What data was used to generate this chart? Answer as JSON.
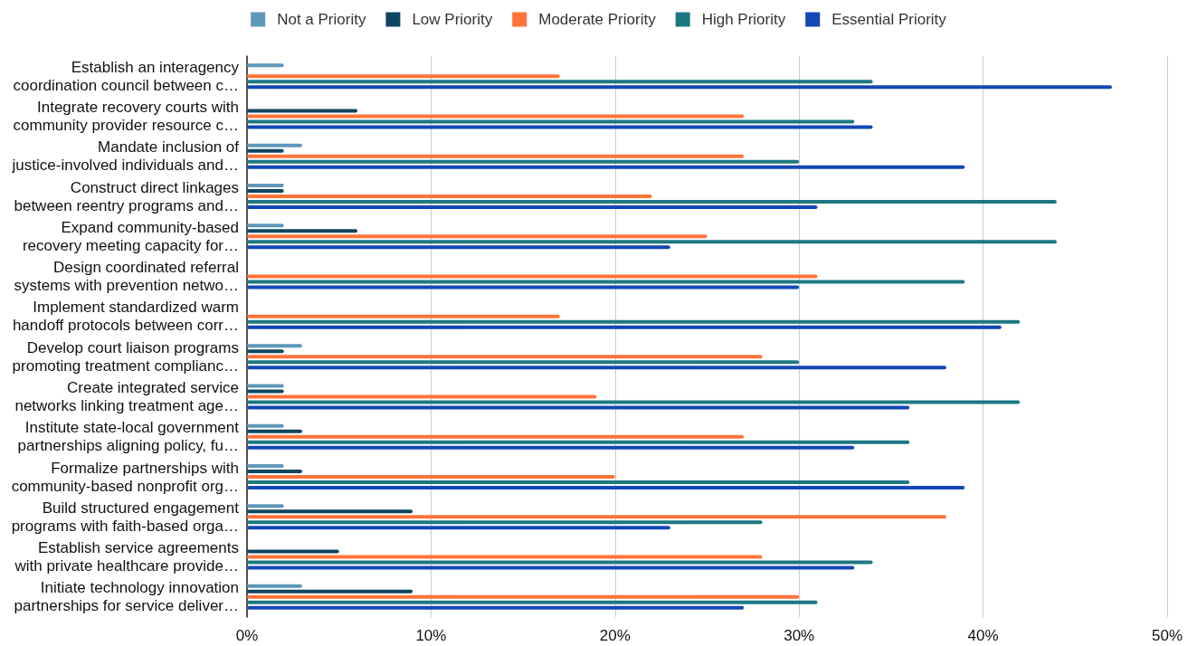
{
  "chart_data": {
    "type": "bar",
    "orientation": "horizontal",
    "categories": [
      "Establish an interagency\ncoordination council between c…",
      "Integrate recovery courts with\ncommunity provider resource c…",
      "Mandate inclusion of\njustice-involved individuals and…",
      "Construct direct linkages\nbetween reentry programs and…",
      "Expand community-based\nrecovery meeting capacity for…",
      "Design coordinated referral\nsystems with prevention netwo…",
      "Implement standardized warm\nhandoff protocols between corr…",
      "Develop court liaison programs\npromoting treatment complianc…",
      "Create integrated service\nnetworks linking treatment age…",
      "Institute state-local government\npartnerships aligning policy, fu…",
      "Formalize partnerships with\ncommunity-based nonprofit org…",
      "Build structured engagement\nprograms with faith-based orga…",
      "Establish service agreements\nwith private healthcare provide…",
      "Initiate technology innovation\npartnerships for service deliver…"
    ],
    "series": [
      {
        "name": "Not a Priority",
        "color": "#5e97b9",
        "values": [
          2,
          0,
          3,
          2,
          2,
          0,
          0,
          3,
          2,
          2,
          2,
          2,
          0,
          3
        ]
      },
      {
        "name": "Low Priority",
        "color": "#0e4560",
        "values": [
          0,
          6,
          2,
          2,
          6,
          0,
          0,
          2,
          2,
          3,
          3,
          9,
          5,
          9
        ]
      },
      {
        "name": "Moderate Priority",
        "color": "#ff7438",
        "values": [
          17,
          27,
          27,
          22,
          25,
          31,
          17,
          28,
          19,
          27,
          20,
          38,
          28,
          30
        ]
      },
      {
        "name": "High Priority",
        "color": "#1d7783",
        "values": [
          34,
          33,
          30,
          44,
          44,
          39,
          42,
          30,
          42,
          36,
          36,
          28,
          34,
          31
        ]
      },
      {
        "name": "Essential Priority",
        "color": "#1347b5",
        "values": [
          47,
          34,
          39,
          31,
          23,
          30,
          41,
          38,
          36,
          33,
          39,
          23,
          33,
          27
        ]
      }
    ],
    "xlim": [
      0,
      50
    ],
    "xticks": [
      {
        "value": 0,
        "label": "0%"
      },
      {
        "value": 10,
        "label": "10%"
      },
      {
        "value": 20,
        "label": "20%"
      },
      {
        "value": 30,
        "label": "30%"
      },
      {
        "value": 40,
        "label": "40%"
      },
      {
        "value": 50,
        "label": "50%"
      }
    ],
    "grid": "x",
    "legend": "top"
  }
}
